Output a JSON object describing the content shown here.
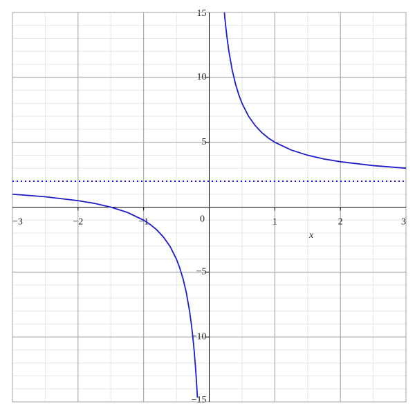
{
  "chart_data": {
    "type": "line",
    "x_label": "x",
    "xlim": [
      -3,
      3
    ],
    "ylim": [
      -15,
      15
    ],
    "xticks": [
      {
        "value": -3,
        "label": "−3"
      },
      {
        "value": -2,
        "label": "−2"
      },
      {
        "value": -1,
        "label": "−1"
      },
      1,
      2,
      3
    ],
    "yticks": [
      {
        "value": -15,
        "label": "−15"
      },
      {
        "value": -10,
        "label": "−10"
      },
      {
        "value": -5,
        "label": "−5"
      },
      5,
      10,
      15
    ],
    "origin_label": "0",
    "grid": true,
    "series": [
      {
        "color": "#1c1cc8",
        "style": "solid",
        "x": [
          -3,
          -2.5,
          -2,
          -1.75,
          -1.5,
          -1.25,
          -1,
          -0.9,
          -0.8,
          -0.7,
          -0.6,
          -0.5,
          -0.45,
          -0.4,
          -0.35,
          -0.3,
          -0.27,
          -0.25,
          -0.23,
          -0.21,
          -0.2,
          -0.19,
          -0.18,
          null,
          0.231,
          0.24,
          0.25,
          0.27,
          0.3,
          0.35,
          0.4,
          0.45,
          0.5,
          0.6,
          0.7,
          0.8,
          0.9,
          1,
          1.25,
          1.5,
          1.75,
          2,
          2.5,
          3
        ],
        "values": [
          1,
          0.8,
          0.5,
          0.29,
          0,
          -0.4,
          -1,
          -1.33,
          -1.75,
          -2.29,
          -3,
          -4,
          -4.67,
          -5.5,
          -6.57,
          -8,
          -9.11,
          -10,
          -11.04,
          -12.29,
          -13,
          -13.79,
          -14.67,
          null,
          14.99,
          14.5,
          14,
          13.11,
          12,
          10.57,
          9.5,
          8.67,
          8,
          7,
          6.29,
          5.75,
          5.33,
          5,
          4.4,
          4,
          3.71,
          3.5,
          3.2,
          3
        ]
      },
      {
        "color": "#1c1cc8",
        "style": "dotted",
        "x": [
          -3,
          3
        ],
        "values": [
          2,
          2
        ]
      }
    ]
  }
}
